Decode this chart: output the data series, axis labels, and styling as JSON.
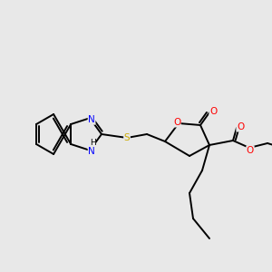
{
  "bg_color": "#e8e8e8",
  "fig_size": [
    3.0,
    3.0
  ],
  "dpi": 100,
  "colors": {
    "N": "#0000ff",
    "O": "#ff0000",
    "S": "#ccaa00",
    "C": "#000000",
    "bond": "#000000"
  }
}
